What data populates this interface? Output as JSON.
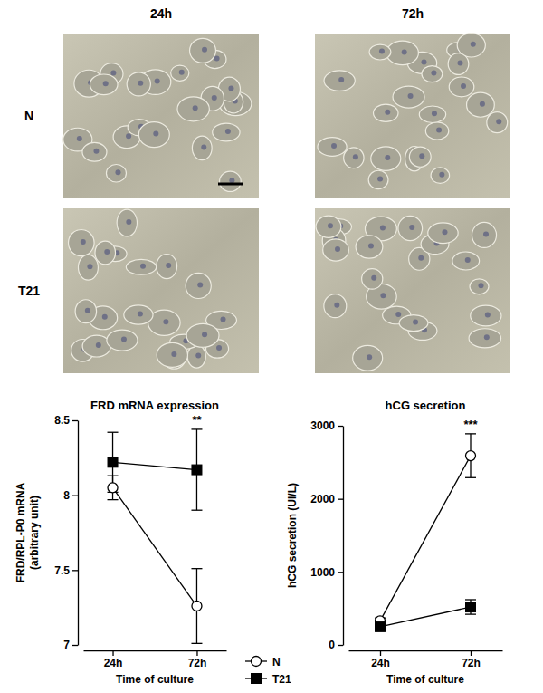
{
  "panels": {
    "columns": [
      "24h",
      "72h"
    ],
    "rows": [
      "N",
      "T21"
    ]
  },
  "chart_data": [
    {
      "type": "line",
      "title": "FRD mRNA expression",
      "x_label": "Time of culture",
      "y_label": [
        "FRD/RPL-P0 mRNA",
        "(arbitrary unit)"
      ],
      "categories": [
        "24h",
        "72h"
      ],
      "series": [
        {
          "name": "N",
          "color": "#000000",
          "marker": "open-circle",
          "values": [
            8.05,
            7.26
          ],
          "errors": [
            0.08,
            0.25
          ]
        },
        {
          "name": "T21",
          "color": "#000000",
          "marker": "square",
          "values": [
            8.22,
            8.17
          ],
          "errors": [
            0.2,
            0.27
          ]
        }
      ],
      "ylim": [
        7,
        8.5
      ],
      "yticks": [
        7,
        7.5,
        8,
        8.5
      ],
      "annotations": [
        {
          "text": "**",
          "x": "72h"
        }
      ],
      "legend": "bottom"
    },
    {
      "type": "line",
      "title": "hCG secretion",
      "x_label": "Time of culture",
      "y_label": [
        "hCG secretion (UI/L)"
      ],
      "categories": [
        "24h",
        "72h"
      ],
      "series": [
        {
          "name": "N",
          "color": "#000000",
          "marker": "open-circle",
          "values": [
            330,
            2590
          ],
          "errors": [
            40,
            300
          ]
        },
        {
          "name": "T21",
          "color": "#000000",
          "marker": "square",
          "values": [
            250,
            520
          ],
          "errors": [
            30,
            100
          ]
        }
      ],
      "ylim": [
        0,
        3000
      ],
      "yticks": [
        0,
        1000,
        2000,
        3000
      ],
      "annotations": [
        {
          "text": "***",
          "x": "72h"
        }
      ]
    }
  ]
}
